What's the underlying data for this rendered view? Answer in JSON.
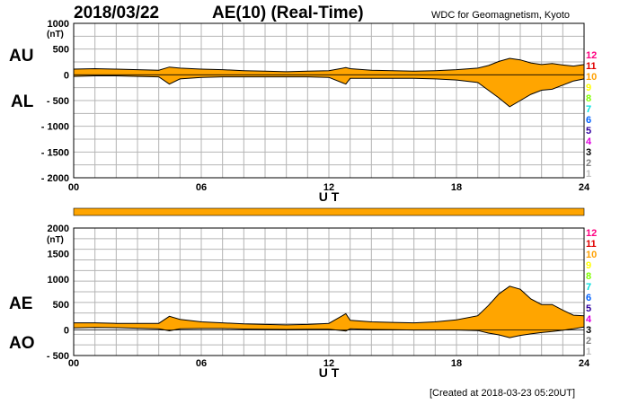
{
  "header": {
    "date": "2018/03/22",
    "title": "AE(10) (Real-Time)",
    "source": "WDC for Geomagnetism, Kyoto"
  },
  "footer": {
    "created": "[Created at 2018-03-23 05:20UT]"
  },
  "colors": {
    "fill": "#ffa500",
    "outline": "#000000",
    "grid": "#b4b4b4"
  },
  "station_scale": {
    "labels": [
      "12",
      "11",
      "10",
      "9",
      "8",
      "7",
      "6",
      "5",
      "4",
      "3",
      "2",
      "1"
    ],
    "colors": [
      "#ff0080",
      "#e00000",
      "#ffa000",
      "#ffff00",
      "#80ff00",
      "#00e0e0",
      "#0060ff",
      "#3000a0",
      "#e000e0",
      "#000000",
      "#808080",
      "#c0c0c0"
    ]
  },
  "chart_data": [
    {
      "type": "area",
      "panel": "AU/AL",
      "label_upper": "AU",
      "label_lower": "AL",
      "unit": "(nT)",
      "xlabel": "U T",
      "ylim": [
        -2000,
        1000
      ],
      "y_ticks": [
        "1000",
        "500",
        "0",
        "- 500",
        "- 1000",
        "- 1500",
        "- 2000"
      ],
      "y_tick_values": [
        1000,
        500,
        0,
        -500,
        -1000,
        -1500,
        -2000
      ],
      "x_ticks": [
        "00",
        "06",
        "12",
        "18",
        "24"
      ],
      "x_tick_values": [
        0,
        6,
        12,
        18,
        24
      ],
      "grid": true,
      "x": [
        0,
        1,
        2,
        3,
        4,
        4.5,
        5,
        6,
        7,
        8,
        9,
        10,
        11,
        12,
        12.8,
        13,
        14,
        15,
        16,
        17,
        18,
        19,
        19.5,
        20,
        20.5,
        21,
        21.5,
        22,
        22.5,
        23,
        23.5,
        24
      ],
      "series": [
        {
          "name": "AU",
          "values": [
            110,
            120,
            110,
            100,
            90,
            150,
            130,
            110,
            100,
            80,
            70,
            60,
            70,
            80,
            140,
            120,
            90,
            80,
            70,
            80,
            100,
            130,
            180,
            260,
            320,
            290,
            230,
            200,
            220,
            190,
            170,
            200
          ]
        },
        {
          "name": "AL",
          "values": [
            -30,
            -20,
            -20,
            -30,
            -40,
            -180,
            -80,
            -50,
            -40,
            -40,
            -40,
            -40,
            -40,
            -50,
            -180,
            -70,
            -70,
            -70,
            -70,
            -80,
            -100,
            -150,
            -300,
            -450,
            -620,
            -500,
            -380,
            -300,
            -280,
            -200,
            -120,
            -80
          ]
        }
      ]
    },
    {
      "type": "area",
      "panel": "AE/AO",
      "label_upper": "AE",
      "label_lower": "AO",
      "unit": "(nT)",
      "xlabel": "U T",
      "ylim": [
        -500,
        2000
      ],
      "y_ticks": [
        "2000",
        "1500",
        "1000",
        "500",
        "0",
        "- 500"
      ],
      "y_tick_values": [
        2000,
        1500,
        1000,
        500,
        0,
        -500
      ],
      "x_ticks": [
        "00",
        "06",
        "12",
        "18",
        "24"
      ],
      "x_tick_values": [
        0,
        6,
        12,
        18,
        24
      ],
      "grid": true,
      "x": [
        0,
        1,
        2,
        3,
        4,
        4.5,
        5,
        6,
        7,
        8,
        9,
        10,
        11,
        12,
        12.8,
        13,
        14,
        15,
        16,
        17,
        18,
        19,
        19.5,
        20,
        20.5,
        21,
        21.5,
        22,
        22.5,
        23,
        23.5,
        24
      ],
      "series": [
        {
          "name": "AE",
          "values": [
            140,
            140,
            130,
            130,
            130,
            270,
            210,
            160,
            140,
            120,
            110,
            100,
            110,
            130,
            320,
            190,
            160,
            150,
            140,
            160,
            200,
            280,
            480,
            710,
            860,
            800,
            610,
            500,
            500,
            390,
            290,
            280
          ]
        },
        {
          "name": "AO",
          "values": [
            40,
            50,
            45,
            35,
            25,
            -15,
            25,
            30,
            30,
            20,
            15,
            10,
            15,
            15,
            -20,
            25,
            10,
            5,
            0,
            0,
            0,
            -10,
            -60,
            -95,
            -150,
            -105,
            -75,
            -50,
            -30,
            -5,
            25,
            60
          ]
        }
      ]
    }
  ]
}
